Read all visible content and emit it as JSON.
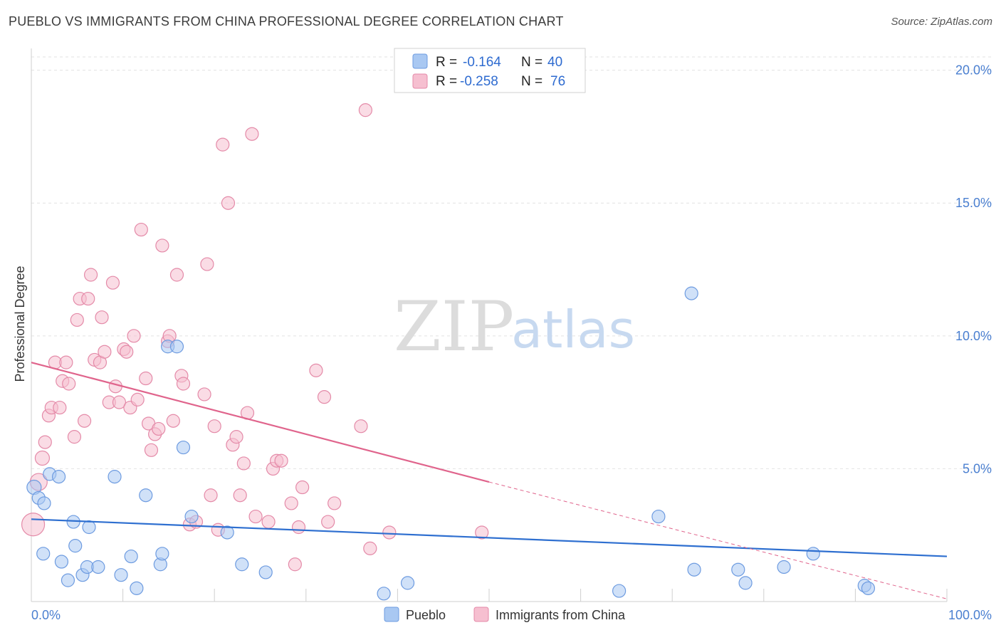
{
  "title": "PUEBLO VS IMMIGRANTS FROM CHINA PROFESSIONAL DEGREE CORRELATION CHART",
  "source": "Source: ZipAtlas.com",
  "watermark": {
    "zip": "ZIP",
    "atlas": "atlas"
  },
  "legend": {
    "rows": [
      {
        "r_label": "R =",
        "r_value": "-0.164",
        "n_label": "N =",
        "n_value": "40",
        "color": "#a9c8f2",
        "stroke": "#6d9be0"
      },
      {
        "r_label": "R =",
        "r_value": "-0.258",
        "n_label": "N =",
        "n_value": "76",
        "color": "#f6bfd0",
        "stroke": "#e48aa8"
      }
    ]
  },
  "bottom_legend": [
    {
      "label": "Pueblo",
      "color": "#a9c8f2",
      "stroke": "#6d9be0"
    },
    {
      "label": "Immigrants from China",
      "color": "#f6bfd0",
      "stroke": "#e48aa8"
    }
  ],
  "chart_data": {
    "type": "scatter",
    "xlabel": "",
    "ylabel": "Professional Degree",
    "xlim": [
      0,
      100
    ],
    "ylim": [
      0,
      20.5
    ],
    "x_tick_labels": [
      {
        "value": 0,
        "label": "0.0%"
      },
      {
        "value": 100,
        "label": "100.0%"
      }
    ],
    "y_ticks": [
      {
        "value": 5,
        "label": "5.0%"
      },
      {
        "value": 10,
        "label": "10.0%"
      },
      {
        "value": 15,
        "label": "15.0%"
      },
      {
        "value": 20,
        "label": "20.0%"
      }
    ],
    "grid": "horizontal dashed",
    "series": [
      {
        "name": "Pueblo",
        "color": "#6d9be0",
        "fill": "#a9c8f2",
        "trend": {
          "x": [
            0,
            100
          ],
          "y": [
            3.1,
            1.7
          ],
          "dashed_from": null
        },
        "points": [
          [
            0.3,
            4.3,
            10
          ],
          [
            0.8,
            3.9,
            9
          ],
          [
            1.4,
            3.7,
            9
          ],
          [
            2.0,
            4.8,
            9
          ],
          [
            3.0,
            4.7,
            9
          ],
          [
            4.6,
            3.0,
            9
          ],
          [
            6.3,
            2.8,
            9
          ],
          [
            1.3,
            1.8,
            9
          ],
          [
            3.3,
            1.5,
            9
          ],
          [
            4.8,
            2.1,
            9
          ],
          [
            5.6,
            1.0,
            9
          ],
          [
            6.1,
            1.3,
            9
          ],
          [
            7.3,
            1.3,
            9
          ],
          [
            4.0,
            0.8,
            9
          ],
          [
            9.1,
            4.7,
            9
          ],
          [
            9.8,
            1.0,
            9
          ],
          [
            10.9,
            1.7,
            9
          ],
          [
            11.5,
            0.5,
            9
          ],
          [
            12.5,
            4.0,
            9
          ],
          [
            14.1,
            1.4,
            9
          ],
          [
            14.3,
            1.8,
            9
          ],
          [
            14.9,
            9.6,
            9
          ],
          [
            15.9,
            9.6,
            9
          ],
          [
            16.6,
            5.8,
            9
          ],
          [
            17.5,
            3.2,
            9
          ],
          [
            21.4,
            2.6,
            9
          ],
          [
            23.0,
            1.4,
            9
          ],
          [
            25.6,
            1.1,
            9
          ],
          [
            38.5,
            0.3,
            9
          ],
          [
            41.1,
            0.7,
            9
          ],
          [
            64.2,
            0.4,
            9
          ],
          [
            68.5,
            3.2,
            9
          ],
          [
            72.1,
            11.6,
            9
          ],
          [
            72.4,
            1.2,
            9
          ],
          [
            77.2,
            1.2,
            9
          ],
          [
            78.0,
            0.7,
            9
          ],
          [
            82.2,
            1.3,
            9
          ],
          [
            85.4,
            1.8,
            9
          ],
          [
            91.0,
            0.6,
            9
          ],
          [
            91.4,
            0.5,
            9
          ]
        ]
      },
      {
        "name": "Immigrants from China",
        "color": "#e48aa8",
        "fill": "#f6bfd0",
        "trend": {
          "x": [
            0,
            50,
            100
          ],
          "y": [
            9.0,
            4.5,
            0.1
          ],
          "dashed_from": 50
        },
        "points": [
          [
            0.2,
            2.9,
            16
          ],
          [
            0.8,
            4.5,
            12
          ],
          [
            1.2,
            5.4,
            10
          ],
          [
            1.5,
            6.0,
            9
          ],
          [
            1.9,
            7.0,
            9
          ],
          [
            2.2,
            7.3,
            9
          ],
          [
            2.6,
            9.0,
            9
          ],
          [
            3.1,
            7.3,
            9
          ],
          [
            3.4,
            8.3,
            9
          ],
          [
            3.8,
            9.0,
            9
          ],
          [
            4.1,
            8.2,
            9
          ],
          [
            4.7,
            6.2,
            9
          ],
          [
            5.0,
            10.6,
            9
          ],
          [
            5.3,
            11.4,
            9
          ],
          [
            5.8,
            6.8,
            9
          ],
          [
            6.2,
            11.4,
            9
          ],
          [
            6.5,
            12.3,
            9
          ],
          [
            6.9,
            9.1,
            9
          ],
          [
            7.5,
            9.0,
            9
          ],
          [
            7.7,
            10.7,
            9
          ],
          [
            8.0,
            9.4,
            9
          ],
          [
            8.5,
            7.5,
            9
          ],
          [
            8.9,
            12.0,
            9
          ],
          [
            9.2,
            8.1,
            9
          ],
          [
            9.6,
            7.5,
            9
          ],
          [
            10.1,
            9.5,
            9
          ],
          [
            10.4,
            9.4,
            9
          ],
          [
            10.8,
            7.3,
            9
          ],
          [
            11.2,
            10.0,
            9
          ],
          [
            11.6,
            7.6,
            9
          ],
          [
            12.0,
            14.0,
            9
          ],
          [
            12.5,
            8.4,
            9
          ],
          [
            12.8,
            6.7,
            9
          ],
          [
            13.1,
            5.7,
            9
          ],
          [
            13.5,
            6.3,
            9
          ],
          [
            13.9,
            6.5,
            9
          ],
          [
            14.3,
            13.4,
            9
          ],
          [
            14.9,
            9.8,
            9
          ],
          [
            15.1,
            10.0,
            9
          ],
          [
            15.5,
            6.8,
            9
          ],
          [
            15.9,
            12.3,
            9
          ],
          [
            16.4,
            8.5,
            9
          ],
          [
            16.6,
            8.2,
            9
          ],
          [
            17.3,
            2.9,
            9
          ],
          [
            18.0,
            3.0,
            9
          ],
          [
            18.9,
            7.8,
            9
          ],
          [
            19.2,
            12.7,
            9
          ],
          [
            19.6,
            4.0,
            9
          ],
          [
            20.0,
            6.6,
            9
          ],
          [
            20.4,
            2.7,
            9
          ],
          [
            20.9,
            17.2,
            9
          ],
          [
            21.5,
            15.0,
            9
          ],
          [
            22.0,
            5.9,
            9
          ],
          [
            22.4,
            6.2,
            9
          ],
          [
            22.8,
            4.0,
            9
          ],
          [
            23.2,
            5.2,
            9
          ],
          [
            23.6,
            7.1,
            9
          ],
          [
            24.1,
            17.6,
            9
          ],
          [
            24.5,
            3.2,
            9
          ],
          [
            25.9,
            3.0,
            9
          ],
          [
            26.4,
            5.0,
            9
          ],
          [
            26.8,
            5.3,
            9
          ],
          [
            27.3,
            5.3,
            9
          ],
          [
            28.4,
            3.7,
            9
          ],
          [
            28.8,
            1.4,
            9
          ],
          [
            29.2,
            2.8,
            9
          ],
          [
            29.6,
            4.3,
            9
          ],
          [
            31.1,
            8.7,
            9
          ],
          [
            32.0,
            7.7,
            9
          ],
          [
            32.4,
            3.0,
            9
          ],
          [
            33.1,
            3.7,
            9
          ],
          [
            36.0,
            6.6,
            9
          ],
          [
            36.5,
            18.5,
            9
          ],
          [
            37.0,
            2.0,
            9
          ],
          [
            39.1,
            2.6,
            9
          ],
          [
            49.2,
            2.6,
            9
          ]
        ]
      }
    ]
  }
}
